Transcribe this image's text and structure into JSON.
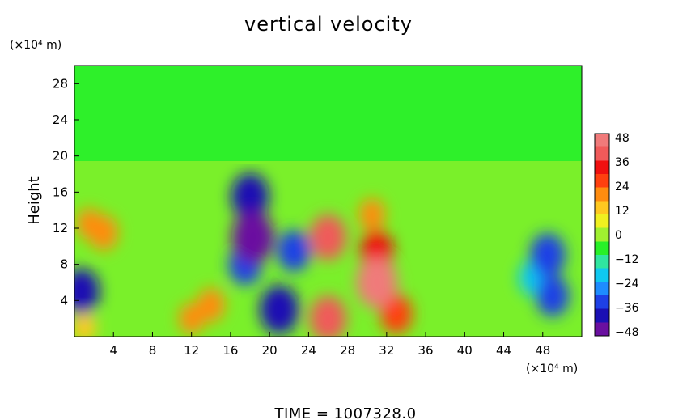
{
  "chart_data": {
    "type": "heatmap",
    "title": "vertical velocity",
    "ylabel": "Height",
    "y_unit_label": "(×10⁴ m)",
    "x_unit_label": "(×10⁴ m)",
    "xlim": [
      0,
      52
    ],
    "ylim": [
      0,
      30
    ],
    "x_ticks": [
      "4",
      "8",
      "12",
      "16",
      "20",
      "24",
      "28",
      "32",
      "36",
      "40",
      "44",
      "48"
    ],
    "y_ticks": [
      "4",
      "8",
      "12",
      "16",
      "20",
      "24",
      "28"
    ],
    "colorbar": {
      "range": [
        -48,
        48
      ],
      "ticks": [
        "48",
        "36",
        "24",
        "12",
        "0",
        "−12",
        "−24",
        "−36",
        "−48"
      ],
      "colors": [
        "#6a0fa0",
        "#1a10b4",
        "#1e40e6",
        "#1e8cff",
        "#10c8f0",
        "#30e6a0",
        "#28f028",
        "#a0f030",
        "#f0f020",
        "#ffc820",
        "#ff8c10",
        "#ff4010",
        "#f01010",
        "#f05a5a",
        "#f07a7a"
      ]
    },
    "features": [
      {
        "x": 3.0,
        "y": 11.5,
        "v": 22
      },
      {
        "x": 1.5,
        "y": 12.5,
        "v": 16
      },
      {
        "x": 0.7,
        "y": 5.0,
        "v": -36
      },
      {
        "x": 18.0,
        "y": 15.5,
        "v": -38
      },
      {
        "x": 18.3,
        "y": 11.0,
        "v": -46
      },
      {
        "x": 17.5,
        "y": 8.0,
        "v": -30
      },
      {
        "x": 21.0,
        "y": 3.0,
        "v": -40
      },
      {
        "x": 22.5,
        "y": 9.5,
        "v": -30
      },
      {
        "x": 26.0,
        "y": 11.0,
        "v": 36
      },
      {
        "x": 26.0,
        "y": 2.0,
        "v": 36
      },
      {
        "x": 31.0,
        "y": 6.0,
        "v": 44
      },
      {
        "x": 31.0,
        "y": 9.5,
        "v": 30
      },
      {
        "x": 30.5,
        "y": 13.5,
        "v": 18
      },
      {
        "x": 48.5,
        "y": 9.0,
        "v": -34
      },
      {
        "x": 49.0,
        "y": 4.5,
        "v": -30
      },
      {
        "x": 47.0,
        "y": 6.5,
        "v": -22
      },
      {
        "x": 12.0,
        "y": 2.0,
        "v": 16
      },
      {
        "x": 14.0,
        "y": 3.5,
        "v": 20
      },
      {
        "x": 1.0,
        "y": 1.0,
        "v": 14
      },
      {
        "x": 33.0,
        "y": 2.5,
        "v": 28
      }
    ],
    "footer": "TIME  =  1007328.0",
    "grid": false,
    "legend": "colorbar-right"
  }
}
